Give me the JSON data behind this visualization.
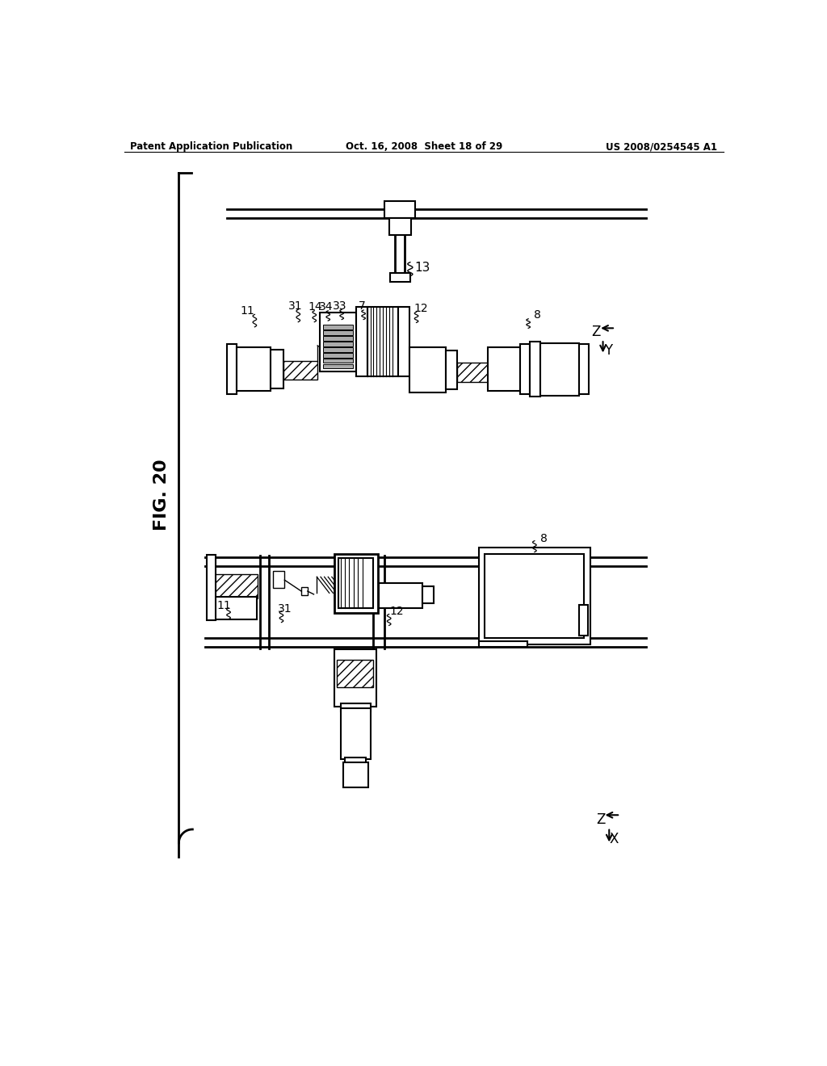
{
  "header_left": "Patent Application Publication",
  "header_mid": "Oct. 16, 2008  Sheet 18 of 29",
  "header_right": "US 2008/0254545 A1",
  "fig_label": "FIG. 20",
  "background": "#ffffff"
}
